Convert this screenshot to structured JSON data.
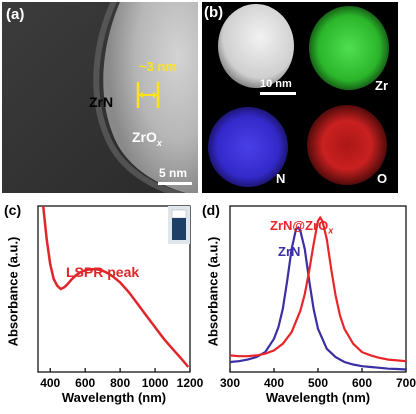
{
  "panel_a": {
    "label": "(a)",
    "measure": "~3 nm",
    "core_label": "ZrN",
    "shell_label_main": "ZrO",
    "shell_label_sub": "x",
    "scalebar": "5 nm"
  },
  "panel_b": {
    "label": "(b)",
    "scalebar": "10 nm",
    "maps": [
      {
        "element": "Zr",
        "color": "#2ecc2e"
      },
      {
        "element": "N",
        "color": "#3b2fd6"
      },
      {
        "element": "O",
        "color": "#e0201c"
      }
    ]
  },
  "colors": {
    "zrn": "#3a2fa3",
    "zrn_zro": "#e8262a",
    "spectrum_c": "#e0262a"
  },
  "chart_data": [
    {
      "panel_label": "(c)",
      "type": "line",
      "annotation": "LSPR peak",
      "xlabel": "Wavelength (nm)",
      "ylabel": "Absorbance (a.u.)",
      "xlim": [
        330,
        1200
      ],
      "xticks": [
        400,
        600,
        800,
        1000,
        1200
      ],
      "series": [
        {
          "x": [
            360,
            380,
            400,
            420,
            440,
            460,
            480,
            500,
            520,
            550,
            580,
            610,
            640,
            670,
            700,
            730,
            760,
            800,
            850,
            900,
            950,
            1000,
            1050,
            1100,
            1150,
            1190
          ],
          "values": [
            1.0,
            0.8,
            0.65,
            0.56,
            0.52,
            0.5,
            0.51,
            0.53,
            0.555,
            0.585,
            0.605,
            0.615,
            0.62,
            0.618,
            0.61,
            0.595,
            0.575,
            0.54,
            0.48,
            0.41,
            0.34,
            0.27,
            0.2,
            0.14,
            0.08,
            0.03
          ]
        }
      ]
    },
    {
      "panel_label": "(d)",
      "type": "line",
      "xlabel": "Wavelength (nm)",
      "ylabel": "Absorbance (a.u.)",
      "xlim": [
        300,
        700
      ],
      "xticks": [
        300,
        400,
        500,
        600,
        700
      ],
      "series": [
        {
          "name": "ZrN",
          "x": [
            300,
            320,
            340,
            360,
            380,
            400,
            410,
            420,
            430,
            440,
            450,
            455,
            460,
            470,
            480,
            490,
            500,
            520,
            540,
            560,
            580,
            600,
            620,
            640,
            660,
            680,
            700
          ],
          "values": [
            0.06,
            0.065,
            0.075,
            0.09,
            0.12,
            0.2,
            0.27,
            0.38,
            0.55,
            0.74,
            0.86,
            0.87,
            0.85,
            0.74,
            0.55,
            0.38,
            0.26,
            0.14,
            0.09,
            0.06,
            0.045,
            0.035,
            0.03,
            0.025,
            0.02,
            0.018,
            0.015
          ]
        },
        {
          "name": "ZrN@ZrO",
          "name_sub": "x",
          "x": [
            300,
            320,
            340,
            360,
            380,
            400,
            420,
            440,
            460,
            470,
            480,
            490,
            500,
            505,
            510,
            520,
            530,
            540,
            550,
            560,
            580,
            600,
            620,
            640,
            660,
            680,
            700
          ],
          "values": [
            0.1,
            0.095,
            0.095,
            0.1,
            0.11,
            0.13,
            0.17,
            0.24,
            0.37,
            0.47,
            0.61,
            0.77,
            0.91,
            0.93,
            0.91,
            0.8,
            0.62,
            0.46,
            0.34,
            0.26,
            0.17,
            0.12,
            0.1,
            0.085,
            0.075,
            0.07,
            0.065
          ]
        }
      ]
    }
  ]
}
